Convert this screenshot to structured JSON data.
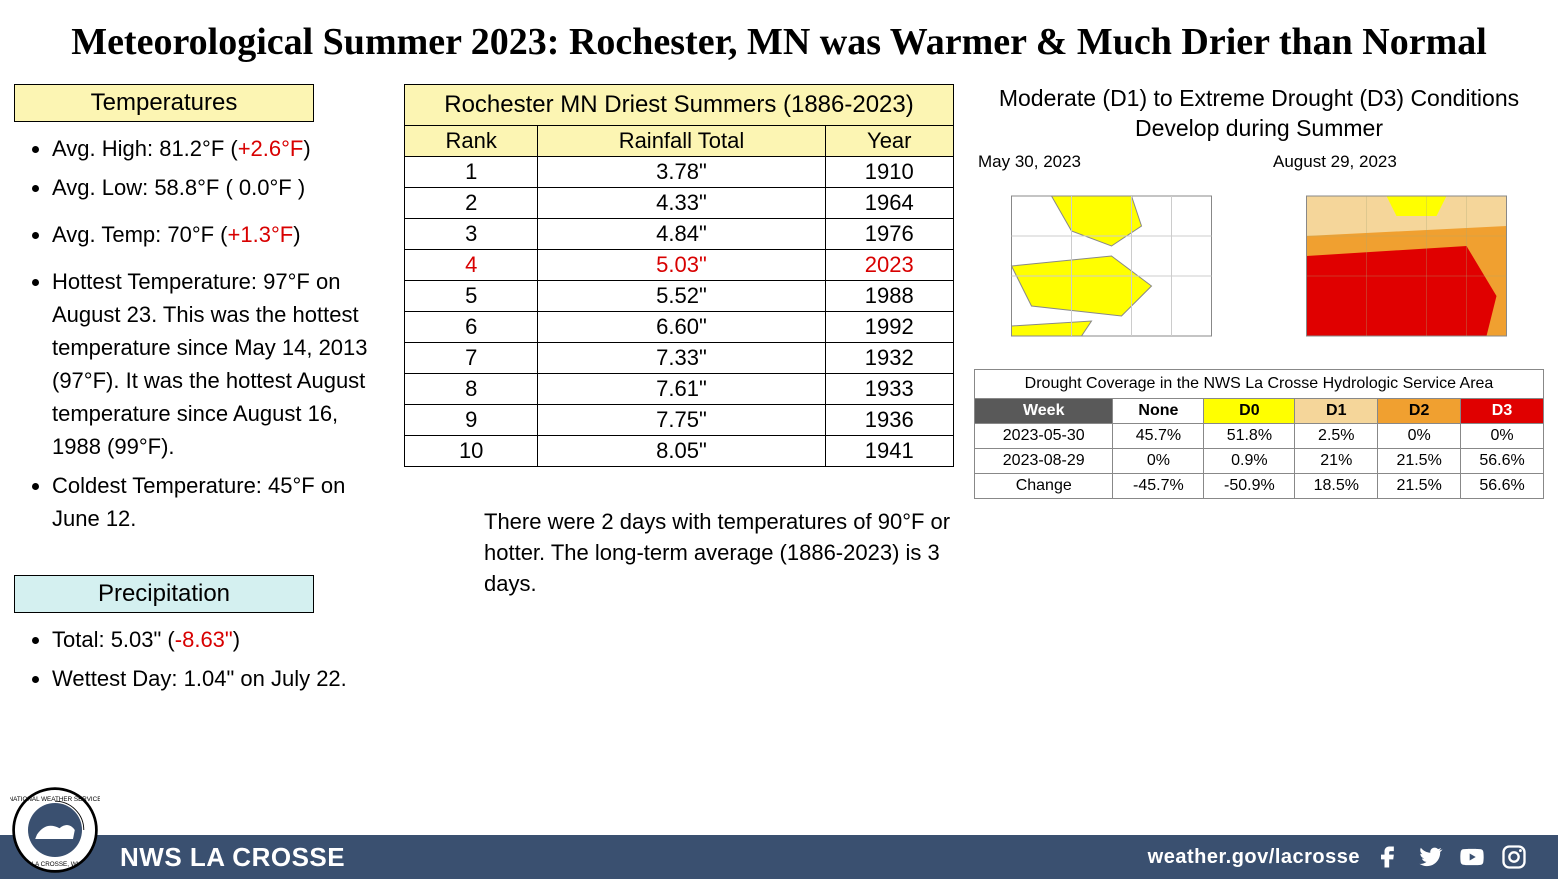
{
  "title": "Meteorological Summer 2023:  Rochester, MN was Warmer & Much Drier than Normal",
  "temperatures": {
    "header": "Temperatures",
    "avgHighLabel": "Avg. High:  81.2°F (",
    "avgHighAnom": "+2.6°F",
    "avgHighClose": ")",
    "avgLow": "Avg. Low:  58.8°F ( 0.0°F )",
    "avgTempLabel": "Avg. Temp:  70°F (",
    "avgTempAnom": "+1.3°F",
    "avgTempClose": ")",
    "hottest": "Hottest Temperature: 97°F on August 23. This was the hottest temperature since May 14, 2013 (97°F). It was the hottest August temperature since August 16, 1988 (99°F).",
    "coldest": "Coldest Temperature: 45°F on June 12."
  },
  "precip": {
    "header": "Precipitation",
    "totalLabel": "Total:  5.03\" (",
    "totalAnom": "-8.63\"",
    "totalClose": ")",
    "wettest": "Wettest Day: 1.04\" on July 22."
  },
  "driest": {
    "title": "Rochester MN Driest Summers (1886-2023)",
    "columns": [
      "Rank",
      "Rainfall Total",
      "Year"
    ],
    "rows": [
      {
        "rank": "1",
        "rain": "3.78\"",
        "year": "1910",
        "hl": false
      },
      {
        "rank": "2",
        "rain": "4.33\"",
        "year": "1964",
        "hl": false
      },
      {
        "rank": "3",
        "rain": "4.84\"",
        "year": "1976",
        "hl": false
      },
      {
        "rank": "4",
        "rain": "5.03\"",
        "year": "2023",
        "hl": true
      },
      {
        "rank": "5",
        "rain": "5.52\"",
        "year": "1988",
        "hl": false
      },
      {
        "rank": "6",
        "rain": "6.60\"",
        "year": "1992",
        "hl": false
      },
      {
        "rank": "7",
        "rain": "7.33\"",
        "year": "1932",
        "hl": false
      },
      {
        "rank": "8",
        "rain": "7.61\"",
        "year": "1933",
        "hl": false
      },
      {
        "rank": "9",
        "rain": "7.75\"",
        "year": "1936",
        "hl": false
      },
      {
        "rank": "10",
        "rain": "8.05\"",
        "year": "1941",
        "hl": false
      }
    ]
  },
  "drought": {
    "title": "Moderate (D1) to Extreme Drought (D3) Conditions Develop during Summer",
    "map1Label": "May 30, 2023",
    "map2Label": "August 29, 2023"
  },
  "coverage": {
    "title": "Drought Coverage in the NWS La Crosse Hydrologic Service Area",
    "headers": [
      "Week",
      "None",
      "D0",
      "D1",
      "D2",
      "D3"
    ],
    "rows": [
      [
        "2023-05-30",
        "45.7%",
        "51.8%",
        "2.5%",
        "0%",
        "0%"
      ],
      [
        "2023-08-29",
        "0%",
        "0.9%",
        "21%",
        "21.5%",
        "56.6%"
      ],
      [
        "Change",
        "-45.7%",
        "-50.9%",
        "18.5%",
        "21.5%",
        "56.6%"
      ]
    ]
  },
  "bottomNote": "There were 2 days with temperatures of 90°F or hotter. The long-term average (1886-2023) is 3 days.",
  "footer": {
    "org": "NWS LA CROSSE",
    "url": "weather.gov/lacrosse"
  }
}
